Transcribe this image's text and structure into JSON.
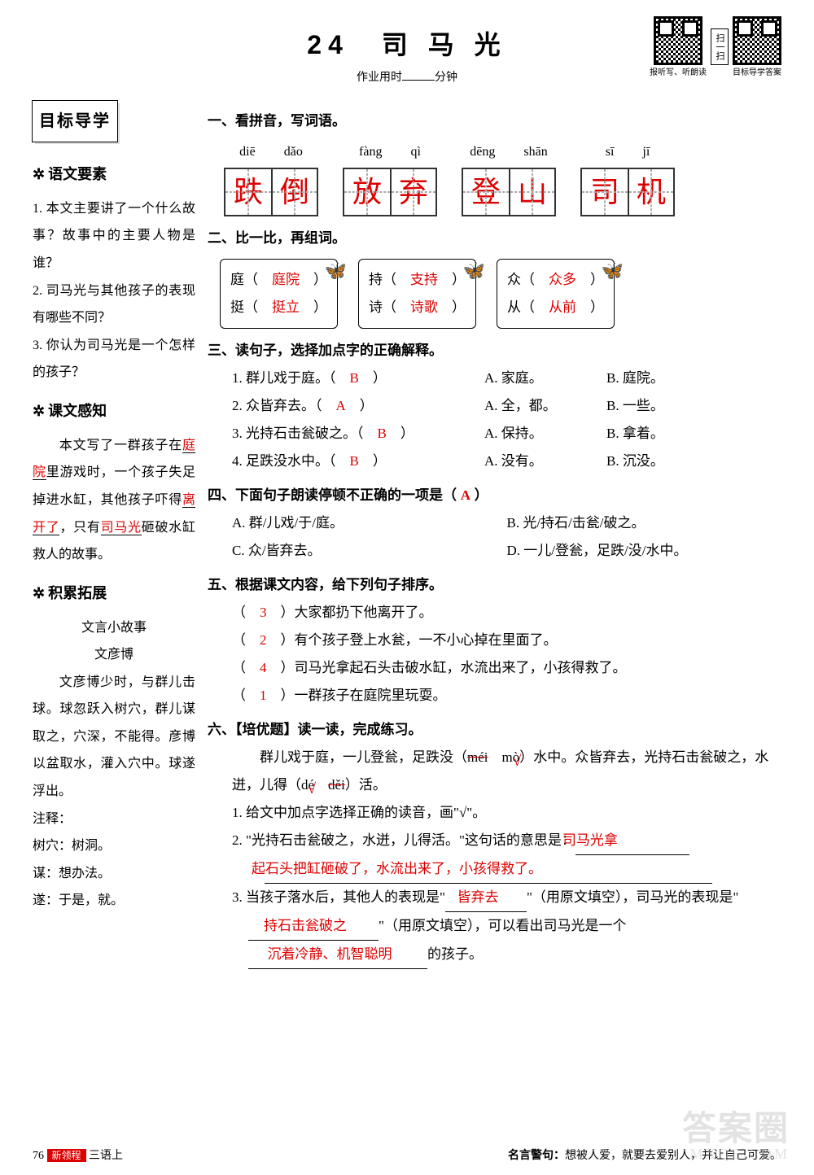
{
  "header": {
    "title": "24　司 马 光",
    "subtitle_prefix": "作业用时",
    "subtitle_suffix": "分钟",
    "qr1_label": "报听写、听朗读",
    "qr2_label": "目标导学答案",
    "scan_label": "扫一扫"
  },
  "sidebar": {
    "target_head": "目标导学",
    "s1_head": "语文要素",
    "s1_q1": "1. 本文主要讲了一个什么故事？故事中的主要人物是谁？",
    "s1_q2": "2. 司马光与其他孩子的表现有哪些不同？",
    "s1_q3": "3. 你认为司马光是一个怎样的孩子？",
    "s2_head": "课文感知",
    "s2_pre1": "本文写了一群孩子在",
    "s2_a1": "庭院",
    "s2_pre2": "里游戏时，一个孩子失足掉进水缸，其他孩子吓得",
    "s2_a2": "离开了",
    "s2_pre3": "，只有",
    "s2_a3": "司马光",
    "s2_pre4": "砸破水缸救人的故事。",
    "s3_head": "积累拓展",
    "s3_title1": "文言小故事",
    "s3_title2": "文彦博",
    "s3_story": "文彦博少时，与群儿击球。球忽跃入树穴，群儿谋取之，穴深，不能得。彦博以盆取水，灌入穴中。球遂浮出。",
    "s3_note_head": "注释：",
    "s3_note1": "树穴：树洞。",
    "s3_note2": "谋：想办法。",
    "s3_note3": "遂：于是，就。"
  },
  "content": {
    "sec1_title": "一、看拼音，写词语。",
    "words": [
      {
        "pinyin": [
          "diē",
          "dǎo"
        ],
        "chars": [
          "跌",
          "倒"
        ]
      },
      {
        "pinyin": [
          "fàng",
          "qì"
        ],
        "chars": [
          "放",
          "弃"
        ]
      },
      {
        "pinyin": [
          "dēng",
          "shān"
        ],
        "chars": [
          "登",
          "山"
        ]
      },
      {
        "pinyin": [
          "sī",
          "jī"
        ],
        "chars": [
          "司",
          "机"
        ]
      }
    ],
    "sec2_title": "二、比一比，再组词。",
    "zuci": [
      {
        "r1_ch": "庭",
        "r1_ans": "庭院",
        "r2_ch": "挺",
        "r2_ans": "挺立"
      },
      {
        "r1_ch": "持",
        "r1_ans": "支持",
        "r2_ch": "诗",
        "r2_ans": "诗歌"
      },
      {
        "r1_ch": "众",
        "r1_ans": "众多",
        "r2_ch": "从",
        "r2_ans": "从前"
      }
    ],
    "sec3_title": "三、读句子，选择加点字的正确解释。",
    "sec3_items": [
      {
        "q": "1. 群儿戏于庭。（",
        "ans": "B",
        "a": "A. 家庭。",
        "b": "B. 庭院。"
      },
      {
        "q": "2. 众皆弃去。（",
        "ans": "A",
        "a": "A. 全，都。",
        "b": "B. 一些。"
      },
      {
        "q": "3. 光持石击瓮破之。（",
        "ans": "B",
        "a": "A. 保持。",
        "b": "B. 拿着。"
      },
      {
        "q": "4. 足跌没水中。（",
        "ans": "B",
        "a": "A. 没有。",
        "b": "B. 沉没。"
      }
    ],
    "sec4_title": "四、下面句子朗读停顿不正确的一项是（",
    "sec4_ans": "A",
    "sec4_suffix": "）",
    "sec4_opts": {
      "a": "A. 群/儿戏/于/庭。",
      "b": "B. 光/持石/击瓮/破之。",
      "c": "C. 众/皆弃去。",
      "d": "D. 一儿/登瓮，足跌/没/水中。"
    },
    "sec5_title": "五、根据课文内容，给下列句子排序。",
    "sec5_items": [
      {
        "ans": "3",
        "text": "）大家都扔下他离开了。"
      },
      {
        "ans": "2",
        "text": "）有个孩子登上水瓮，一不小心掉在里面了。"
      },
      {
        "ans": "4",
        "text": "）司马光拿起石头击破水缸，水流出来了，小孩得救了。"
      },
      {
        "ans": "1",
        "text": "）一群孩子在庭院里玩耍。"
      }
    ],
    "sec6_title": "六、【培优题】读一读，完成练习。",
    "sec6_passage1_pre": "群儿戏于庭，一儿登瓮，足跌没（",
    "sec6_p1_wrong": "méi",
    "sec6_p1_right": "mò",
    "sec6_p1_mid": "）水中。众皆弃去，光持石击瓮破之，水迸，儿得（",
    "sec6_p1_right2": "dé",
    "sec6_p1_wrong2": "děi",
    "sec6_p1_suf": "）活。",
    "sec6_q1": "1. 给文中加点字选择正确的读音，画\"√\"。",
    "sec6_q2_pre": "2. \"光持石击瓮破之，水迸，儿得活。\"这句话的意思是：",
    "sec6_q2_ans": "司马光拿起石头把缸砸破了，水流出来了，小孩得救了。",
    "sec6_q3_pre": "3. 当孩子落水后，其他人的表现是\"",
    "sec6_q3_ans1": "皆弃去",
    "sec6_q3_mid1": "\"（用原文填空），司马光的表现是\"",
    "sec6_q3_ans2": "持石击瓮破之",
    "sec6_q3_mid2": "\"（用原文填空），可以看出司马光是一个",
    "sec6_q3_ans3": "沉着冷静、机智聪明",
    "sec6_q3_suf": "的孩子。"
  },
  "footer": {
    "page_num": "76",
    "page_tag": "新领程",
    "page_book": "三语上",
    "quote_label": "名言警句：",
    "quote": "想被人爱，就要去爱别人，并让自己可爱。"
  },
  "watermark": {
    "main": "答案圈",
    "sub": "MXQE.COM"
  }
}
